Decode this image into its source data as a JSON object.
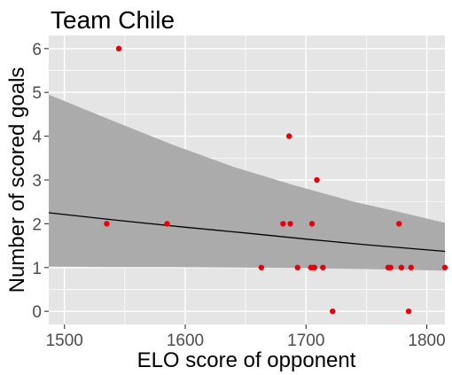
{
  "chart_data": {
    "type": "scatter",
    "title": "Team Chile",
    "xlabel": "ELO score of opponent",
    "ylabel": "Number of scored goals",
    "xlim": [
      1487,
      1815
    ],
    "ylim": [
      -0.3,
      6.3
    ],
    "xticks": [
      1500,
      1600,
      1700,
      1800
    ],
    "yticks": [
      0,
      1,
      2,
      3,
      4,
      5,
      6
    ],
    "grid": true,
    "points": [
      {
        "x": 1535,
        "y": 2
      },
      {
        "x": 1545,
        "y": 6
      },
      {
        "x": 1585,
        "y": 2
      },
      {
        "x": 1663,
        "y": 1
      },
      {
        "x": 1681,
        "y": 2
      },
      {
        "x": 1686,
        "y": 4
      },
      {
        "x": 1687,
        "y": 2
      },
      {
        "x": 1693,
        "y": 1
      },
      {
        "x": 1704,
        "y": 1
      },
      {
        "x": 1705,
        "y": 2
      },
      {
        "x": 1706,
        "y": 1
      },
      {
        "x": 1707,
        "y": 1
      },
      {
        "x": 1709,
        "y": 3
      },
      {
        "x": 1714,
        "y": 1
      },
      {
        "x": 1722,
        "y": 0
      },
      {
        "x": 1768,
        "y": 1
      },
      {
        "x": 1770,
        "y": 1
      },
      {
        "x": 1777,
        "y": 2
      },
      {
        "x": 1779,
        "y": 1
      },
      {
        "x": 1785,
        "y": 0
      },
      {
        "x": 1787,
        "y": 1
      },
      {
        "x": 1815,
        "y": 1
      }
    ],
    "fit_line": [
      {
        "x": 1487,
        "y": 2.25
      },
      {
        "x": 1550,
        "y": 2.06
      },
      {
        "x": 1600,
        "y": 1.92
      },
      {
        "x": 1650,
        "y": 1.79
      },
      {
        "x": 1700,
        "y": 1.65
      },
      {
        "x": 1750,
        "y": 1.52
      },
      {
        "x": 1815,
        "y": 1.37
      }
    ],
    "confidence_band": [
      {
        "x": 1487,
        "upper": 4.95,
        "lower": 1.02
      },
      {
        "x": 1540,
        "upper": 4.35,
        "lower": 1.01
      },
      {
        "x": 1590,
        "upper": 3.8,
        "lower": 1.01
      },
      {
        "x": 1640,
        "upper": 3.3,
        "lower": 1.0
      },
      {
        "x": 1690,
        "upper": 2.88,
        "lower": 0.99
      },
      {
        "x": 1740,
        "upper": 2.5,
        "lower": 0.97
      },
      {
        "x": 1780,
        "upper": 2.25,
        "lower": 0.95
      },
      {
        "x": 1815,
        "upper": 2.02,
        "lower": 0.93
      }
    ],
    "colors": {
      "panel": "#e5e5e5",
      "grid_major": "#ffffff",
      "points": "#e8000b",
      "band": "#ababab",
      "line": "#000000"
    }
  }
}
